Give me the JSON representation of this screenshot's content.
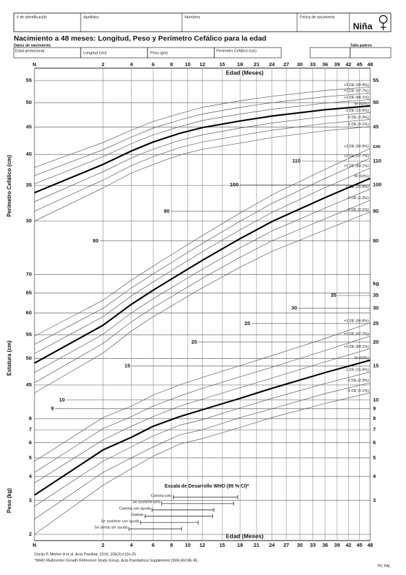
{
  "header": {
    "fields": [
      "# de Identificación",
      "Apellidos",
      "Nombres",
      "Fecha de nacimiento"
    ],
    "sex": "Niña",
    "title": "Nacimiento a 48 meses: Longitud, Peso y Perímetro Cefálico para la edad",
    "birth_data_label": "Datos de nacimiento",
    "parents_label": "Talla padres",
    "birth_fields": [
      "Edad gestacional",
      "Longitud (cm)",
      "Peso (gm)",
      "Perímetro Cefálico (cm)"
    ]
  },
  "chart_data": [
    {
      "type": "line",
      "y_label": "Perímetro Cefálico (cm)",
      "x_label": "Edad (Meses)",
      "x_scale": "sqrt",
      "y_scale": "log",
      "xlim": [
        0,
        48
      ],
      "xticks": [
        {
          "value": 0,
          "label": "N"
        },
        2,
        4,
        6,
        8,
        10,
        12,
        15,
        18,
        21,
        24,
        27,
        30,
        33,
        36,
        39,
        42,
        45,
        48
      ],
      "ylim": [
        30,
        55
      ],
      "yticks": [
        55,
        50,
        45,
        40,
        35,
        30
      ],
      "x": [
        0,
        2,
        4,
        6,
        9,
        12,
        18,
        24,
        36,
        48
      ],
      "series": [
        {
          "name": "+3 DE (99.9%)",
          "color": "#555555",
          "line_width": 0.7,
          "values": [
            37.8,
            42.1,
            44.4,
            46.1,
            47.7,
            49.0,
            50.4,
            51.4,
            52.7,
            53.5
          ]
        },
        {
          "name": "+2 DE (97.7%)",
          "color": "#555555",
          "line_width": 0.7,
          "values": [
            36.5,
            40.8,
            43.1,
            44.8,
            46.4,
            47.6,
            49.0,
            50.0,
            51.3,
            52.1
          ]
        },
        {
          "name": "+1 DE (84.1%)",
          "color": "#555555",
          "line_width": 0.7,
          "values": [
            35.2,
            39.6,
            41.9,
            43.5,
            45.1,
            46.3,
            47.6,
            48.6,
            49.9,
            50.7
          ]
        },
        {
          "name": "M (50%)",
          "color": "#000000",
          "line_width": 2.2,
          "values": [
            33.9,
            38.3,
            40.6,
            42.2,
            43.8,
            44.9,
            46.2,
            47.2,
            48.5,
            49.3
          ]
        },
        {
          "name": "-1 DE (15.9%)",
          "color": "#555555",
          "line_width": 0.7,
          "values": [
            32.6,
            37.1,
            39.4,
            40.9,
            42.5,
            43.5,
            44.8,
            45.8,
            47.1,
            47.9
          ]
        },
        {
          "name": "-2 DE (2.3%)",
          "color": "#555555",
          "line_width": 0.7,
          "values": [
            31.3,
            35.8,
            38.1,
            39.6,
            41.2,
            42.2,
            43.4,
            44.4,
            45.7,
            46.5
          ]
        },
        {
          "name": "-3 DE (0.1%)",
          "color": "#555555",
          "line_width": 0.7,
          "values": [
            30.0,
            34.6,
            36.9,
            38.3,
            39.9,
            40.9,
            42.0,
            43.0,
            44.3,
            45.1
          ]
        }
      ]
    },
    {
      "type": "line",
      "y_label": "Estatura (cm)",
      "unit": "cm",
      "x_scale": "sqrt",
      "y_scale": "log",
      "xlim": [
        0,
        48
      ],
      "ylim": [
        45,
        110
      ],
      "yticks": [
        110,
        100,
        90,
        80,
        70,
        65,
        60,
        55,
        50,
        45
      ],
      "x": [
        0,
        2,
        4,
        6,
        9,
        12,
        18,
        24,
        36,
        48
      ],
      "series": [
        {
          "name": "+3 DE (99.9%)",
          "color": "#555555",
          "line_width": 0.7,
          "values": [
            54.7,
            63.1,
            68.4,
            72.3,
            77.3,
            81.7,
            89.4,
            96.1,
            106.5,
            115.7
          ]
        },
        {
          "name": "+2 DE (97.7%)",
          "color": "#555555",
          "line_width": 0.7,
          "values": [
            52.9,
            61.1,
            66.3,
            70.1,
            74.9,
            79.2,
            86.5,
            92.9,
            102.7,
            111.3
          ]
        },
        {
          "name": "+1 DE (84.1%)",
          "color": "#555555",
          "line_width": 0.7,
          "values": [
            51.0,
            59.1,
            64.2,
            67.9,
            72.5,
            76.6,
            83.6,
            89.6,
            99.0,
            107.0
          ]
        },
        {
          "name": "M (50%)",
          "color": "#000000",
          "line_width": 2.2,
          "values": [
            49.1,
            57.1,
            62.1,
            65.7,
            70.1,
            74.0,
            80.7,
            86.4,
            95.1,
            102.7
          ]
        },
        {
          "name": "-1 DE (15.9%)",
          "color": "#555555",
          "line_width": 0.7,
          "values": [
            47.3,
            55.1,
            60.0,
            63.5,
            67.7,
            71.4,
            77.8,
            83.2,
            91.2,
            98.4
          ]
        },
        {
          "name": "-2 DE (2.3%)",
          "color": "#555555",
          "line_width": 0.7,
          "values": [
            45.4,
            53.1,
            57.9,
            61.3,
            65.3,
            68.9,
            74.9,
            80.0,
            87.4,
            94.1
          ]
        },
        {
          "name": "-3 DE (0.1%)",
          "color": "#555555",
          "line_width": 0.7,
          "values": [
            43.6,
            51.1,
            55.8,
            59.1,
            62.9,
            66.3,
            72.0,
            76.7,
            83.6,
            89.8
          ]
        }
      ]
    },
    {
      "type": "line",
      "y_label": "Peso (kg)",
      "unit": "kg",
      "x_scale": "sqrt",
      "y_scale": "log",
      "xlim": [
        0,
        48
      ],
      "ylim": [
        2,
        35
      ],
      "yticks": [
        35,
        30,
        25,
        20,
        15,
        10,
        9,
        8,
        7,
        6,
        5,
        4,
        3,
        2
      ],
      "x": [
        0,
        2,
        4,
        6,
        9,
        12,
        18,
        24,
        36,
        48
      ],
      "series": [
        {
          "name": "+3 DE (99.9%)",
          "color": "#555555",
          "line_width": 0.7,
          "values": [
            4.8,
            8.1,
            9.3,
            10.6,
            12.0,
            13.1,
            15.1,
            17.0,
            20.9,
            25.2
          ]
        },
        {
          "name": "+2 DE (97.7%)",
          "color": "#555555",
          "line_width": 0.7,
          "values": [
            4.2,
            7.1,
            8.2,
            9.3,
            10.5,
            11.5,
            13.2,
            14.8,
            18.1,
            21.5
          ]
        },
        {
          "name": "+1 DE (84.1%)",
          "color": "#555555",
          "line_width": 0.7,
          "values": [
            3.7,
            6.2,
            7.3,
            8.2,
            9.3,
            10.1,
            11.6,
            13.0,
            15.8,
            18.5
          ]
        },
        {
          "name": "M (50%)",
          "color": "#000000",
          "line_width": 2.2,
          "values": [
            3.2,
            5.5,
            6.4,
            7.3,
            8.2,
            8.9,
            10.2,
            11.5,
            13.9,
            16.1
          ]
        },
        {
          "name": "-1 DE (15.9%)",
          "color": "#555555",
          "line_width": 0.7,
          "values": [
            2.8,
            4.8,
            5.7,
            6.5,
            7.4,
            7.9,
            9.1,
            10.2,
            12.2,
            14.0
          ]
        },
        {
          "name": "-2 DE (2.3%)",
          "color": "#555555",
          "line_width": 0.7,
          "values": [
            2.4,
            4.2,
            5.0,
            5.7,
            6.6,
            7.0,
            8.1,
            9.0,
            10.8,
            12.3
          ]
        },
        {
          "name": "-3 DE (0.1%)",
          "color": "#555555",
          "line_width": 0.7,
          "values": [
            2.0,
            3.6,
            4.4,
            5.1,
            5.9,
            6.3,
            7.2,
            8.1,
            9.6,
            10.9
          ]
        }
      ]
    }
  ],
  "development_scale": {
    "title": "Escala de Desarrollo WHO (95 % CI)*",
    "items": [
      {
        "label": "Camina solo",
        "range": [
          8.2,
          17.6
        ]
      },
      {
        "label": "Se sostiene solo",
        "range": [
          6.9,
          16.9
        ]
      },
      {
        "label": "Camina con ayuda",
        "range": [
          5.9,
          13.7
        ]
      },
      {
        "label": "Gatean",
        "range": [
          5.2,
          13.5
        ]
      },
      {
        "label": "Se sostiene con ayuda",
        "range": [
          4.8,
          11.4
        ]
      },
      {
        "label": "Se sienta sin ayuda",
        "range": [
          3.8,
          9.2
        ]
      }
    ]
  },
  "footer": {
    "references": [
      "Durán P, Merker A et al. Acta Paediatr. 2016; 105(3):e116-25",
      "*WHO Multicentre Growth Reference Study Group. Acta Paediatrica Supplement 2006;450:86-95."
    ],
    "code": "PC PAL"
  }
}
